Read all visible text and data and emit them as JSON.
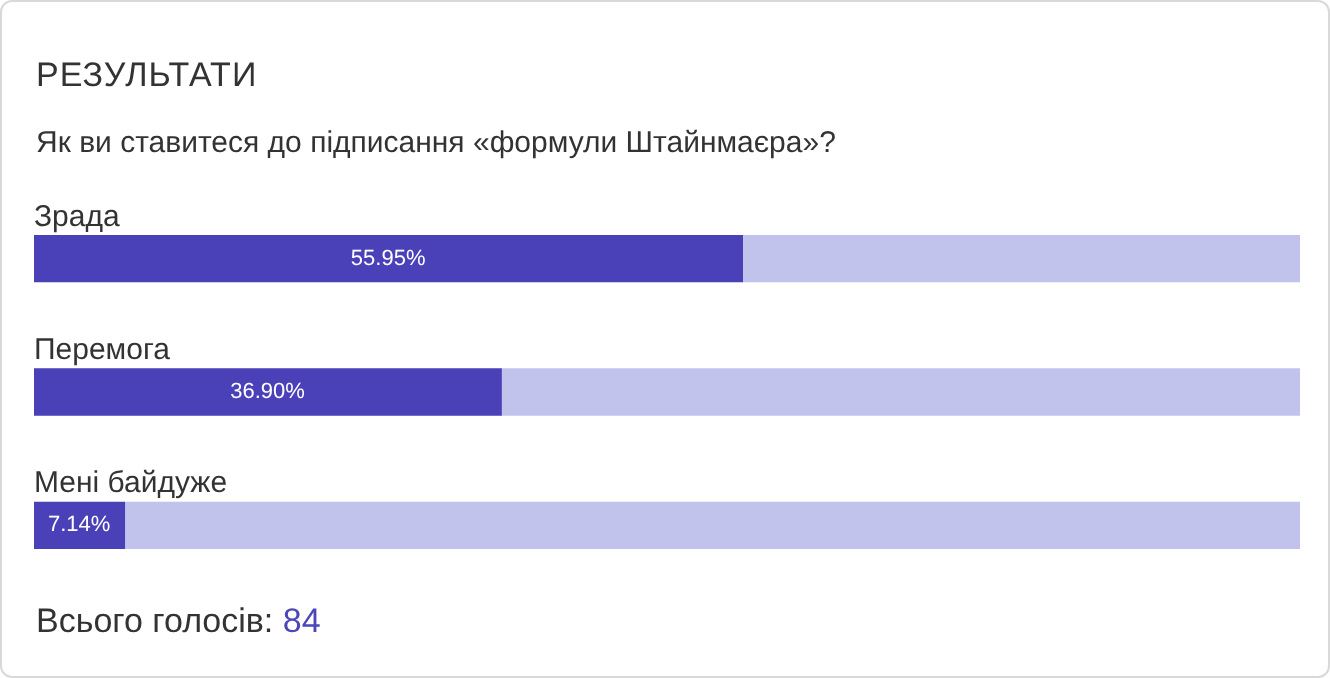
{
  "chart_data": {
    "type": "bar",
    "orientation": "horizontal",
    "stacked": true,
    "title": "РЕЗУЛЬТАТИ",
    "subtitle": "Як ви ставитеся до підписання «формули Штайнмаєра»?",
    "categories": [
      "Зрада",
      "Перемога",
      "Мені байдуже"
    ],
    "series": [
      {
        "color": "#4a40b8",
        "values": [
          55.95,
          36.9,
          7.14
        ],
        "value_labels": [
          "55.95%",
          "36.90%",
          "7.14%"
        ]
      },
      {
        "color": "#c1c3ec",
        "values": [
          44.05,
          63.1,
          92.86
        ]
      }
    ],
    "xlim": [
      0,
      100
    ],
    "tick_labels": false,
    "legend": false,
    "annotations": [
      "Всього голосів: 84"
    ]
  }
}
